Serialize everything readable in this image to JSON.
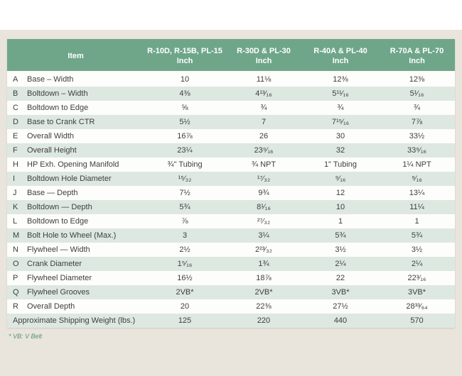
{
  "colors": {
    "header_bg": "#6fa68a",
    "row_alt_bg": "#dde8e1",
    "row_bg": "#fdfdfb",
    "page_band_bg": "#e9e5dc",
    "header_text": "#ffffff",
    "body_text": "#3e3e3e",
    "footnote_text": "#4f9376"
  },
  "table": {
    "item_header": "Item",
    "columns": [
      {
        "model": "R-10D, R-15B, PL-15",
        "unit": "Inch"
      },
      {
        "model": "R-30D & PL-30",
        "unit": "Inch"
      },
      {
        "model": "R-40A & PL-40",
        "unit": "Inch"
      },
      {
        "model": "R-70A & PL-70",
        "unit": "Inch"
      }
    ],
    "rows": [
      {
        "letter": "A",
        "item": "Base – Width",
        "values": [
          "10",
          "11⅛",
          "12⅜",
          "12⅜"
        ]
      },
      {
        "letter": "B",
        "item": "Boltdown – Width",
        "values": [
          "4⅜",
          "4¹³⁄₁₆",
          "5¹¹⁄₁₆",
          "5¹⁄₁₆"
        ]
      },
      {
        "letter": "C",
        "item": "Boltdown to Edge",
        "values": [
          "⅝",
          "¾",
          "¾",
          "¾"
        ]
      },
      {
        "letter": "D",
        "item": "Base to Crank CTR",
        "values": [
          "5½",
          "7",
          "7¹⁵⁄₁₆",
          "7⅞"
        ]
      },
      {
        "letter": "E",
        "item": "Overall Width",
        "values": [
          "16⅞",
          "26",
          "30",
          "33½"
        ]
      },
      {
        "letter": "F",
        "item": "Overall Height",
        "values": [
          "23¼",
          "23⁹⁄₁₆",
          "32",
          "33⁹⁄₁₆"
        ]
      },
      {
        "letter": "H",
        "item": "HP Exh. Opening Manifold",
        "values": [
          "¾\" Tubing",
          "¾ NPT",
          "1\" Tubing",
          "1¼ NPT"
        ]
      },
      {
        "letter": "I",
        "item": "Boltdown Hole Diameter",
        "values": [
          "¹⁵⁄₃₂",
          "¹⁷⁄₃₂",
          "⁹⁄₁₆",
          "⁹⁄₁₆"
        ]
      },
      {
        "letter": "J",
        "item": "Base — Depth",
        "values": [
          "7½",
          "9¾",
          "12",
          "13¼"
        ]
      },
      {
        "letter": "K",
        "item": "Boltdown — Depth",
        "values": [
          "5¾",
          "8¹⁄₁₆",
          "10",
          "11¼"
        ]
      },
      {
        "letter": "L",
        "item": "Boltdown to Edge",
        "values": [
          "⅞",
          "²⁷⁄₃₂",
          "1",
          "1"
        ]
      },
      {
        "letter": "M",
        "item": "Bolt Hole to Wheel (Max.)",
        "values": [
          "3",
          "3¼",
          "5¾",
          "5¾"
        ]
      },
      {
        "letter": "N",
        "item": "Flywheel — Width",
        "values": [
          "2½",
          "2²³⁄₃₂",
          "3½",
          "3½"
        ]
      },
      {
        "letter": "O",
        "item": "Crank Diameter",
        "values": [
          "1⁵⁄₁₆",
          "1¾",
          "2¼",
          "2¼"
        ]
      },
      {
        "letter": "P",
        "item": "Flywheel Diameter",
        "values": [
          "16½",
          "18⅞",
          "22",
          "22³⁄₁₆"
        ]
      },
      {
        "letter": "Q",
        "item": "Flywheel Grooves",
        "values": [
          "2VB*",
          "2VB*",
          "3VB*",
          "3VB*"
        ]
      },
      {
        "letter": "R",
        "item": "Overall Depth",
        "values": [
          "20",
          "22⅜",
          "27½",
          "28³³⁄₆₄"
        ]
      }
    ],
    "summary_row": {
      "label": "Approximate Shipping Weight (lbs.)",
      "values": [
        "125",
        "220",
        "440",
        "570"
      ]
    }
  },
  "footnote": "* VB: V Belt"
}
